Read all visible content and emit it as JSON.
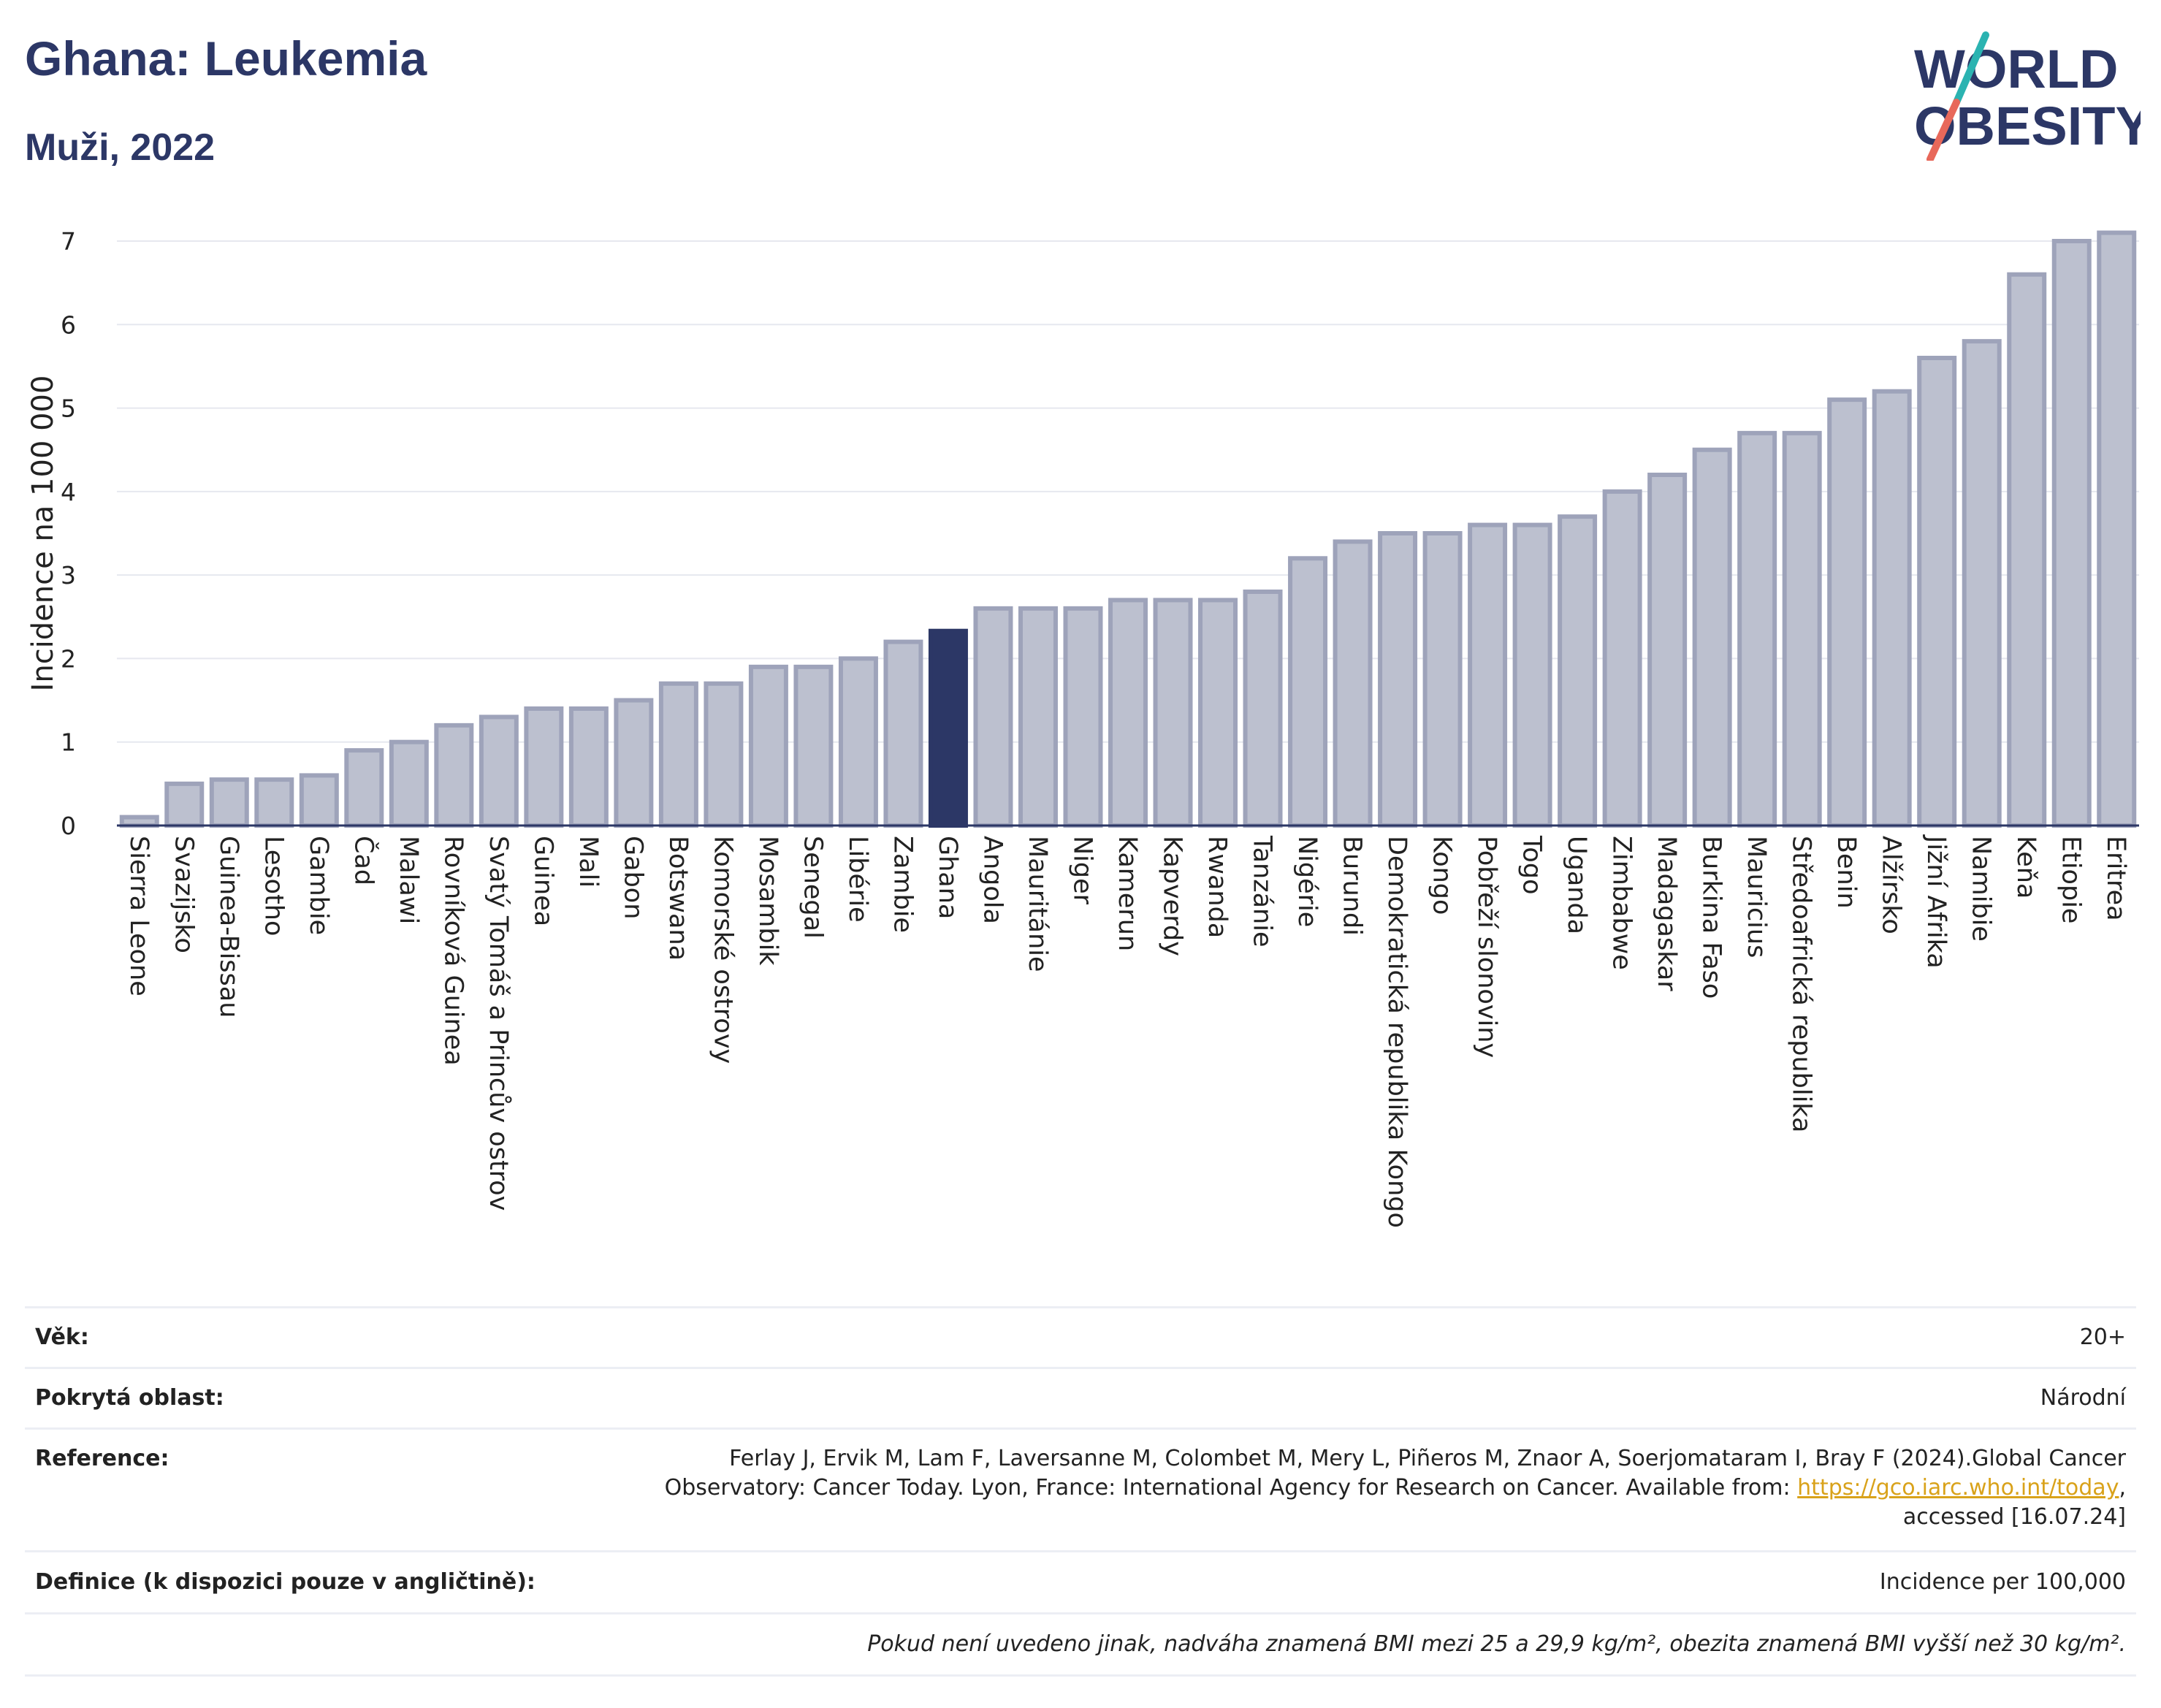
{
  "header": {
    "title": "Ghana: Leukemia",
    "subtitle": "Muži, 2022"
  },
  "logo": {
    "line1": "WORLD",
    "line2": "OBESITY",
    "colors": {
      "text": "#2c3766",
      "slash_teal": "#2bb3b1",
      "slash_red": "#e8685a"
    }
  },
  "chart_data": {
    "type": "bar",
    "ylabel": "Incidence na 100 000",
    "ylim": [
      0,
      7.5
    ],
    "yticks": [
      0,
      1,
      2,
      3,
      4,
      5,
      6,
      7
    ],
    "grid": true,
    "highlight": "Ghana",
    "colors": {
      "bar": "#bcc0cf",
      "bar_edge": "#9ea3ba",
      "highlight": "#2c3766"
    },
    "categories": [
      "Sierra Leone",
      "Svazijsko",
      "Guinea-Bissau",
      "Lesotho",
      "Gambie",
      "Čad",
      "Malawi",
      "Rovníková Guinea",
      "Svatý Tomáš a Princův ostrov",
      "Guinea",
      "Mali",
      "Gabon",
      "Botswana",
      "Komorské ostrovy",
      "Mosambik",
      "Senegal",
      "Libérie",
      "Zambie",
      "Ghana",
      "Angola",
      "Mauritánie",
      "Niger",
      "Kamerun",
      "Kapverdy",
      "Rwanda",
      "Tanzánie",
      "Nigérie",
      "Burundi",
      "Demokratická republika Kongo",
      "Kongo",
      "Pobřeží slonoviny",
      "Togo",
      "Uganda",
      "Zimbabwe",
      "Madagaskar",
      "Burkina Faso",
      "Mauricius",
      "Středoafrická republika",
      "Benin",
      "Alžírsko",
      "Jižní Afrika",
      "Namibie",
      "Keňa",
      "Etiopie",
      "Eritrea"
    ],
    "values": [
      0.1,
      0.5,
      0.55,
      0.55,
      0.6,
      0.9,
      1.0,
      1.2,
      1.3,
      1.4,
      1.4,
      1.5,
      1.7,
      1.7,
      1.9,
      1.9,
      2.0,
      2.2,
      2.33,
      2.6,
      2.6,
      2.6,
      2.7,
      2.7,
      2.7,
      2.8,
      3.2,
      3.4,
      3.5,
      3.5,
      3.6,
      3.6,
      3.7,
      4.0,
      4.2,
      4.5,
      4.7,
      4.7,
      5.1,
      5.2,
      5.6,
      5.8,
      6.6,
      7.0,
      7.1
    ]
  },
  "info": {
    "age_label": "Věk:",
    "age_value": "20+",
    "area_label": "Pokrytá oblast:",
    "area_value": "Národní",
    "reference_label": "Reference:",
    "reference_text": "Ferlay J, Ervik M, Lam F, Laversanne M, Colombet M, Mery L, Piñeros M, Znaor A, Soerjomataram I, Bray F (2024).Global Cancer Observatory: Cancer Today. Lyon, France: International Agency for Research on Cancer. Available from: ",
    "reference_link": "https://gco.iarc.who.int/today",
    "reference_tail": ", accessed [16.07.24]",
    "definition_label": "Definice (k dispozici pouze v angličtině):",
    "definition_value": "Incidence per 100,000",
    "note": "Pokud není uvedeno jinak, nadváha znamená BMI mezi 25 a 29,9 kg/m², obezita znamená BMI vyšší než 30 kg/m²."
  }
}
